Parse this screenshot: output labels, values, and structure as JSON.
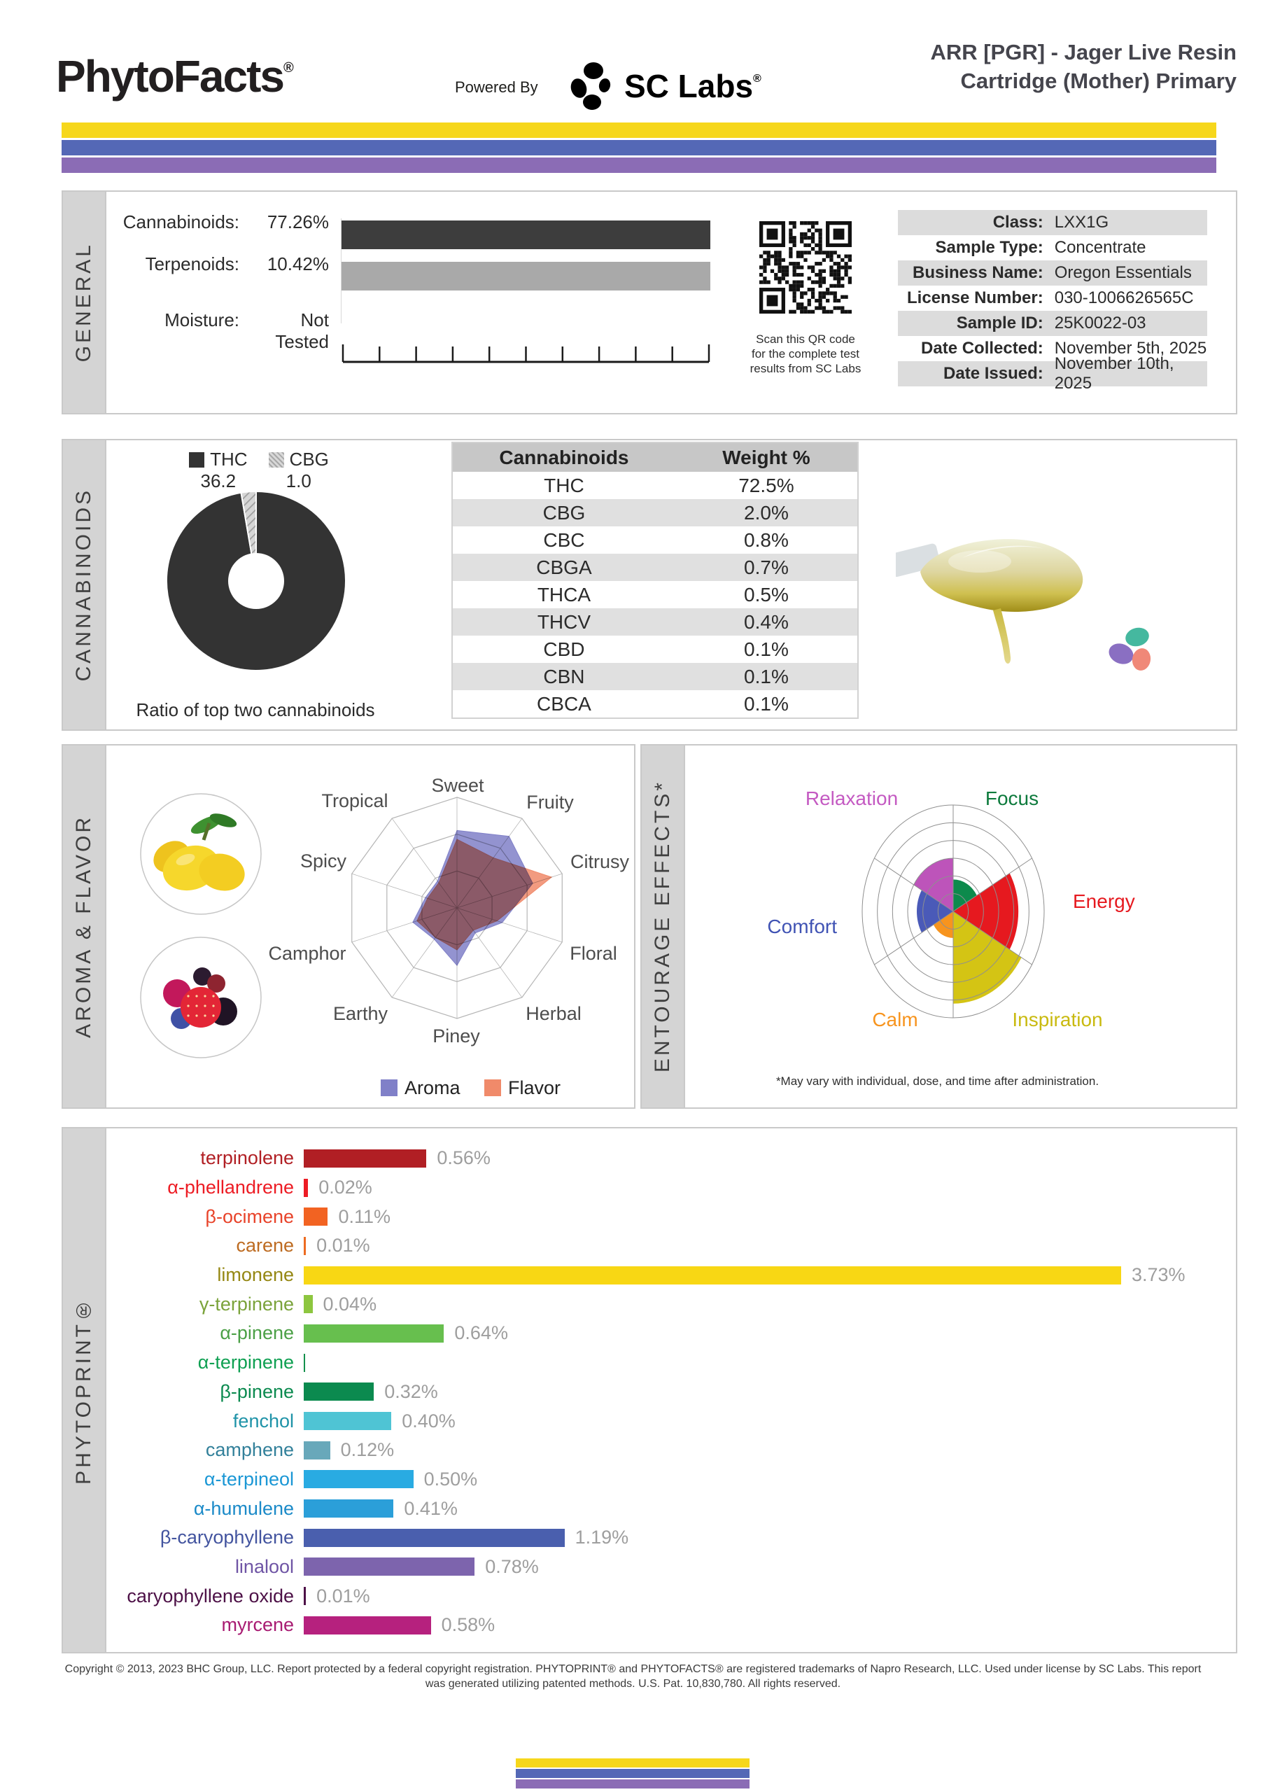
{
  "header": {
    "brand": "PhytoFacts",
    "brand_reg": "®",
    "powered_by": "Powered By",
    "lab_name": "SC Labs",
    "lab_reg": "®",
    "title_line1": "ARR [PGR] - Jager Live Resin",
    "title_line2": "Cartridge (Mother) Primary"
  },
  "accent_colors": [
    "#f6d71c",
    "#5468b6",
    "#8b6cb5"
  ],
  "general": {
    "section_label": "GENERAL",
    "stats": [
      {
        "label": "Cannabinoids:",
        "value": "77.26%",
        "bar_color": "#3d3d3d"
      },
      {
        "label": "Terpenoids:",
        "value": "10.42%",
        "bar_color": "#a9a9a9"
      }
    ],
    "moisture_label": "Moisture:",
    "moisture_value": "Not Tested",
    "qr_caption_lines": [
      "Scan this QR code",
      "for the complete test",
      "results from SC Labs"
    ],
    "info_rows": [
      {
        "label": "Class:",
        "value": "LXX1G"
      },
      {
        "label": "Sample Type:",
        "value": "Concentrate"
      },
      {
        "label": "Business Name:",
        "value": "Oregon Essentials"
      },
      {
        "label": "License Number:",
        "value": "030-1006626565C"
      },
      {
        "label": "Sample ID:",
        "value": "25K0022-03"
      },
      {
        "label": "Date Collected:",
        "value": "November 5th, 2025"
      },
      {
        "label": "Date Issued:",
        "value": "November 10th, 2025"
      }
    ]
  },
  "cannabinoids": {
    "section_label": "CANNABINOIDS",
    "donut": {
      "items": [
        {
          "name": "THC",
          "display": "36.2",
          "value": 36.2,
          "color": "#333333",
          "hatched": false
        },
        {
          "name": "CBG",
          "display": "1.0",
          "value": 1.0,
          "color": "#cccccc",
          "hatched": true
        }
      ],
      "caption": "Ratio of top two cannabinoids"
    },
    "table": {
      "headers": [
        "Cannabinoids",
        "Weight %"
      ],
      "rows": [
        [
          "THC",
          "72.5%"
        ],
        [
          "CBG",
          "2.0%"
        ],
        [
          "CBC",
          "0.8%"
        ],
        [
          "CBGA",
          "0.7%"
        ],
        [
          "THCA",
          "0.5%"
        ],
        [
          "THCV",
          "0.4%"
        ],
        [
          "CBD",
          "0.1%"
        ],
        [
          "CBN",
          "0.1%"
        ],
        [
          "CBCA",
          "0.1%"
        ]
      ]
    }
  },
  "aroma_flavor": {
    "section_label": "AROMA & FLAVOR",
    "axes": [
      "Sweet",
      "Fruity",
      "Citrusy",
      "Floral",
      "Herbal",
      "Piney",
      "Earthy",
      "Camphor",
      "Spicy",
      "Tropical"
    ],
    "series": [
      {
        "name": "Aroma",
        "color": "#8080c8",
        "values": [
          0.7,
          0.8,
          0.72,
          0.43,
          0.28,
          0.52,
          0.35,
          0.42,
          0.3,
          0.3
        ]
      },
      {
        "name": "Flavor",
        "color": "#f08a6a",
        "values": [
          0.62,
          0.56,
          0.9,
          0.38,
          0.25,
          0.38,
          0.33,
          0.38,
          0.28,
          0.28
        ]
      }
    ]
  },
  "entourage": {
    "section_label": "ENTOURAGE EFFECTS*",
    "footnote": "*May vary with individual, dose, and time after administration.",
    "max_rings": 6,
    "effects": [
      {
        "label": "Focus",
        "value": 1.8,
        "start_deg": 0,
        "end_deg": 60,
        "color": "#0d8a4c",
        "label_color": "#0d7a3c"
      },
      {
        "label": "Energy",
        "value": 4.3,
        "start_deg": 60,
        "end_deg": 120,
        "color": "#e6191f",
        "label_color": "#e6191f"
      },
      {
        "label": "Inspiration",
        "value": 5.2,
        "start_deg": 120,
        "end_deg": 180,
        "color": "#d4c414",
        "label_color": "#c9ba10"
      },
      {
        "label": "Calm",
        "value": 1.5,
        "start_deg": 180,
        "end_deg": 240,
        "color": "#f7941e",
        "label_color": "#f7941e"
      },
      {
        "label": "Comfort",
        "value": 2.4,
        "start_deg": 240,
        "end_deg": 300,
        "color": "#4a5ab8",
        "label_color": "#4053b4"
      },
      {
        "label": "Relaxation",
        "value": 3.0,
        "start_deg": 300,
        "end_deg": 360,
        "color": "#bd54ba",
        "label_color": "#c45ac2"
      }
    ]
  },
  "phytoprint": {
    "section_label": "PHYTOPRINT®",
    "scale_max_pct": 3.73,
    "terpenes": [
      {
        "name": "terpinolene",
        "display": "0.56%",
        "pct": 0.56,
        "bar_color": "#b11f24",
        "label_color": "#b11f24"
      },
      {
        "name": "α-phellandrene",
        "display": "0.02%",
        "pct": 0.02,
        "bar_color": "#ed1c24",
        "label_color": "#ed1c24"
      },
      {
        "name": "β-ocimene",
        "display": "0.11%",
        "pct": 0.11,
        "bar_color": "#f26322",
        "label_color": "#e8432a"
      },
      {
        "name": "carene",
        "display": "0.01%",
        "pct": 0.01,
        "bar_color": "#ed6b21",
        "label_color": "#bd6b21"
      },
      {
        "name": "limonene",
        "display": "3.73%",
        "pct": 3.73,
        "bar_color": "#f8d714",
        "label_color": "#958713"
      },
      {
        "name": "γ-terpinene",
        "display": "0.04%",
        "pct": 0.04,
        "bar_color": "#8dc63f",
        "label_color": "#7ba33b"
      },
      {
        "name": "α-pinene",
        "display": "0.64%",
        "pct": 0.64,
        "bar_color": "#67bf4e",
        "label_color": "#4ba046"
      },
      {
        "name": "α-terpinene",
        "display": "",
        "pct": 0.004,
        "bar_color": "#14904c",
        "label_color": "#0fa052"
      },
      {
        "name": "β-pinene",
        "display": "0.32%",
        "pct": 0.32,
        "bar_color": "#0b8a4f",
        "label_color": "#0b8a4f"
      },
      {
        "name": "fenchol",
        "display": "0.40%",
        "pct": 0.4,
        "bar_color": "#4fc4d4",
        "label_color": "#1f93a8"
      },
      {
        "name": "camphene",
        "display": "0.12%",
        "pct": 0.12,
        "bar_color": "#68a8ba",
        "label_color": "#32809a"
      },
      {
        "name": "α-terpineol",
        "display": "0.50%",
        "pct": 0.5,
        "bar_color": "#29abe2",
        "label_color": "#1b97d5"
      },
      {
        "name": "α-humulene",
        "display": "0.41%",
        "pct": 0.41,
        "bar_color": "#2b9fd9",
        "label_color": "#1b8ac8"
      },
      {
        "name": "β-caryophyllene",
        "display": "1.19%",
        "pct": 1.19,
        "bar_color": "#4a5fae",
        "label_color": "#43549f"
      },
      {
        "name": "linalool",
        "display": "0.78%",
        "pct": 0.78,
        "bar_color": "#7d64ad",
        "label_color": "#6f55a5"
      },
      {
        "name": "caryophyllene oxide",
        "display": "0.01%",
        "pct": 0.01,
        "bar_color": "#4d1147",
        "label_color": "#4d1147"
      },
      {
        "name": "myrcene",
        "display": "0.58%",
        "pct": 0.58,
        "bar_color": "#b6217e",
        "label_color": "#a81b72"
      }
    ]
  },
  "footer": {
    "line1": "Copyright © 2013, 2023 BHC Group, LLC. Report protected by a federal copyright registration. PHYTOPRINT® and PHYTOFACTS® are registered trademarks of Napro Research, LLC. Used under license by SC Labs. This report",
    "line2": "was generated utilizing patented methods. U.S. Pat. 10,830,780. All rights reserved."
  },
  "chart_data": [
    {
      "type": "pie",
      "title": "Ratio of top two cannabinoids",
      "labels": [
        "THC",
        "CBG"
      ],
      "values": [
        36.2,
        1.0
      ],
      "colors": [
        "#333333",
        "#cccccc"
      ],
      "note": "donut; CBG slice hatched, just counter-clockwise of 12 o'clock"
    },
    {
      "type": "radar",
      "categories": [
        "Sweet",
        "Fruity",
        "Citrusy",
        "Floral",
        "Herbal",
        "Piney",
        "Earthy",
        "Camphor",
        "Spicy",
        "Tropical"
      ],
      "series": [
        {
          "name": "Aroma",
          "values": [
            0.7,
            0.8,
            0.72,
            0.43,
            0.28,
            0.52,
            0.35,
            0.42,
            0.3,
            0.3
          ]
        },
        {
          "name": "Flavor",
          "values": [
            0.62,
            0.56,
            0.9,
            0.38,
            0.25,
            0.38,
            0.33,
            0.38,
            0.28,
            0.28
          ]
        }
      ],
      "ylim": [
        0,
        1
      ],
      "grid_levels": 3,
      "legend_position": "bottom"
    },
    {
      "type": "polar_area",
      "title": "ENTOURAGE EFFECTS*",
      "categories": [
        "Focus",
        "Energy",
        "Inspiration",
        "Calm",
        "Comfort",
        "Relaxation"
      ],
      "values": [
        1.8,
        4.3,
        5.2,
        1.5,
        2.4,
        3.0
      ],
      "ylim": [
        0,
        6
      ],
      "rings": 6
    },
    {
      "type": "bar",
      "orientation": "horizontal",
      "title": "PHYTOPRINT®",
      "categories": [
        "terpinolene",
        "α-phellandrene",
        "β-ocimene",
        "carene",
        "limonene",
        "γ-terpinene",
        "α-pinene",
        "α-terpinene",
        "β-pinene",
        "fenchol",
        "camphene",
        "α-terpineol",
        "α-humulene",
        "β-caryophyllene",
        "linalool",
        "caryophyllene oxide",
        "myrcene"
      ],
      "values": [
        0.56,
        0.02,
        0.11,
        0.01,
        3.73,
        0.04,
        0.64,
        0.004,
        0.32,
        0.4,
        0.12,
        0.5,
        0.41,
        1.19,
        0.78,
        0.01,
        0.58
      ],
      "unit": "%",
      "xlim": [
        0,
        3.73
      ]
    }
  ]
}
